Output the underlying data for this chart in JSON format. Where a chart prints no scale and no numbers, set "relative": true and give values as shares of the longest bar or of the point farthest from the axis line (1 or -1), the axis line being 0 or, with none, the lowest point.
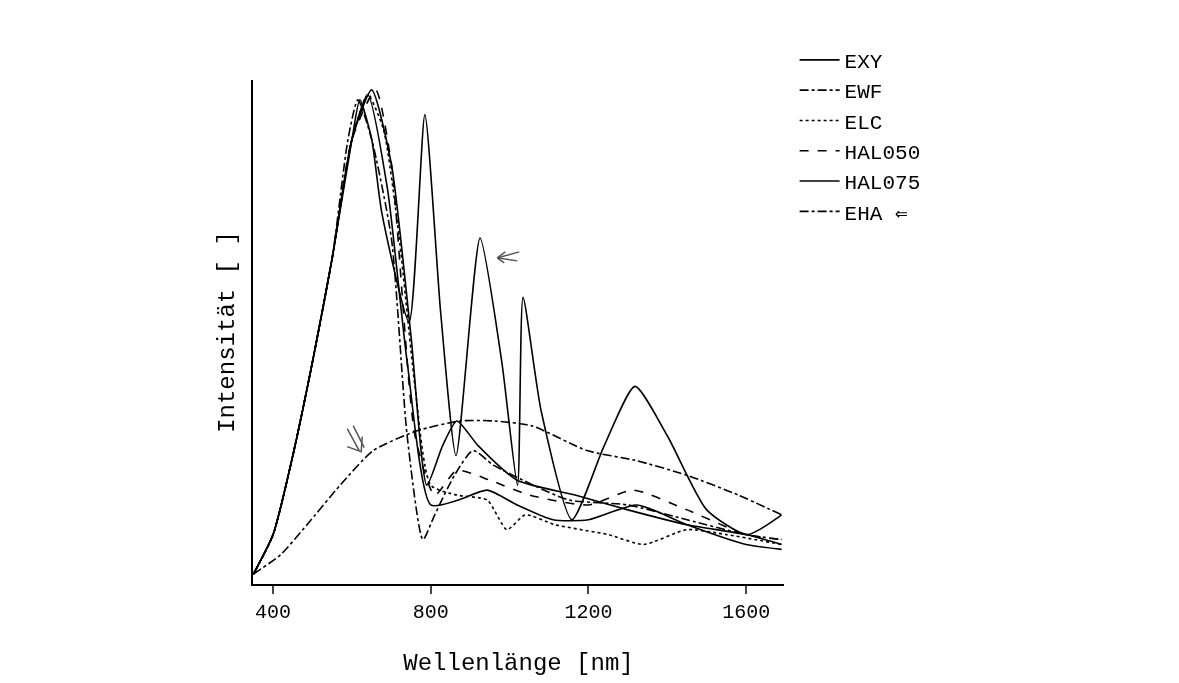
{
  "chart_data": {
    "type": "line",
    "xlabel": "Wellenlänge [nm]",
    "ylabel": "Intensität [ ]",
    "relative": true,
    "xlim": [
      349,
      1696
    ],
    "xticks": [
      400,
      800,
      1200,
      1600
    ],
    "grid": false,
    "legend": "top right",
    "marker": "none",
    "series": [
      {
        "name": "EXY",
        "color": "#000000",
        "line_style": "solid",
        "x": [
          350,
          400,
          450,
          500,
          550,
          600,
          650,
          700,
          750,
          790,
          830,
          866,
          920,
          1019,
          1166,
          1300,
          1450,
          1600,
          1690
        ],
        "values": [
          0.02,
          0.1,
          0.26,
          0.45,
          0.66,
          0.9,
          1.0,
          0.85,
          0.5,
          0.2,
          0.28,
          0.33,
          0.28,
          0.21,
          0.18,
          0.15,
          0.12,
          0.1,
          0.08
        ]
      },
      {
        "name": "EWF",
        "color": "#000000",
        "line_style": "dashdot",
        "x": [
          350,
          400,
          450,
          500,
          550,
          590,
          615,
          650,
          700,
          740,
          780,
          810,
          860,
          907,
          960,
          1060,
          1150,
          1300,
          1450,
          1600,
          1690
        ],
        "values": [
          0.02,
          0.1,
          0.26,
          0.45,
          0.66,
          0.9,
          0.98,
          0.9,
          0.7,
          0.3,
          0.09,
          0.14,
          0.22,
          0.27,
          0.24,
          0.2,
          0.17,
          0.16,
          0.13,
          0.1,
          0.09
        ]
      },
      {
        "name": "ELC",
        "color": "#000000",
        "line_style": "dotted",
        "x": [
          350,
          400,
          450,
          500,
          550,
          600,
          640,
          680,
          720,
          760,
          800,
          866,
          943,
          993,
          1040,
          1115,
          1250,
          1340,
          1450,
          1550,
          1690
        ],
        "values": [
          0.02,
          0.1,
          0.26,
          0.45,
          0.66,
          0.9,
          0.99,
          0.92,
          0.7,
          0.4,
          0.2,
          0.18,
          0.17,
          0.11,
          0.14,
          0.12,
          0.1,
          0.08,
          0.11,
          0.1,
          0.08
        ]
      },
      {
        "name": "HAL050",
        "color": "#000000",
        "line_style": "dashed",
        "x": [
          350,
          400,
          450,
          500,
          550,
          600,
          660,
          700,
          760,
          810,
          866,
          950,
          1050,
          1200,
          1313,
          1450,
          1600,
          1690
        ],
        "values": [
          0.02,
          0.1,
          0.26,
          0.45,
          0.66,
          0.9,
          1.0,
          0.85,
          0.3,
          0.18,
          0.23,
          0.21,
          0.18,
          0.16,
          0.19,
          0.15,
          0.1,
          0.09
        ]
      },
      {
        "name": "HAL075",
        "color": "#000000",
        "line_style": "solid",
        "x": [
          350,
          400,
          450,
          500,
          550,
          600,
          640,
          690,
          740,
          800,
          870,
          943,
          1019,
          1110,
          1200,
          1323,
          1450,
          1600,
          1690
        ],
        "values": [
          0.02,
          0.1,
          0.26,
          0.45,
          0.66,
          0.9,
          0.99,
          0.8,
          0.45,
          0.16,
          0.17,
          0.19,
          0.16,
          0.13,
          0.13,
          0.16,
          0.12,
          0.08,
          0.07
        ]
      },
      {
        "color": "#000000",
        "line_style": "solid",
        "x": [
          350,
          400,
          450,
          500,
          550,
          600,
          620,
          650,
          676,
          745,
          785,
          825,
          864,
          925,
          980,
          1020,
          1034,
          1080,
          1158,
          1240,
          1318,
          1400,
          1500,
          1602,
          1690
        ],
        "values": [
          0.02,
          0.1,
          0.26,
          0.45,
          0.66,
          0.9,
          0.98,
          0.9,
          0.75,
          0.53,
          0.95,
          0.55,
          0.26,
          0.7,
          0.45,
          0.2,
          0.58,
          0.35,
          0.13,
          0.28,
          0.4,
          0.3,
          0.15,
          0.1,
          0.14
        ]
      },
      {
        "name": "EHA ⇐",
        "color": "#000000",
        "line_style": "dashdot",
        "x": [
          350,
          420,
          486,
          570,
          654,
          765,
          875,
          960,
          1057,
          1196,
          1320,
          1450,
          1580,
          1690
        ],
        "values": [
          0.02,
          0.06,
          0.12,
          0.2,
          0.27,
          0.31,
          0.33,
          0.33,
          0.32,
          0.27,
          0.25,
          0.22,
          0.18,
          0.14
        ]
      }
    ]
  }
}
